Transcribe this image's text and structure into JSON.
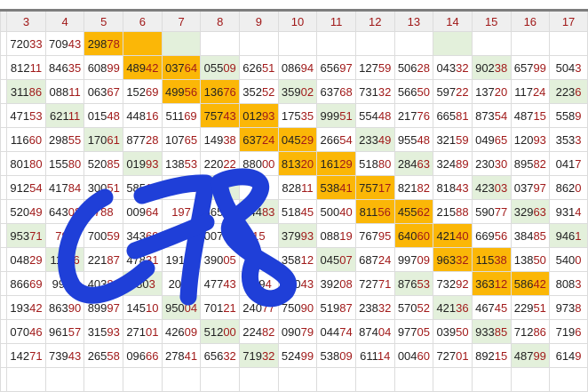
{
  "colors": {
    "highlight_orange": "#fbb707",
    "highlight_green": "#e3f0db",
    "digit_red": "#a11a1a",
    "ink_blue": "#1f3fd8"
  },
  "columns": [
    "3",
    "4",
    "5",
    "6",
    "7",
    "8",
    "9",
    "10",
    "11",
    "12",
    "13",
    "14",
    "15",
    "16",
    "17"
  ],
  "handwriting": "C78",
  "rows": [
    {
      "values": [
        "72033",
        "70943",
        "29878",
        "",
        "",
        "",
        "",
        "",
        "",
        "",
        "",
        "",
        "",
        "",
        ""
      ],
      "highlight": [
        "",
        "",
        "orange",
        "orange",
        "green",
        "",
        "",
        "",
        "",
        "",
        "",
        "green",
        "",
        "",
        ""
      ]
    },
    {
      "values": [
        "81211",
        "84635",
        "60899",
        "48942",
        "03764",
        "05509",
        "62651",
        "08694",
        "65697",
        "12759",
        "50628",
        "04332",
        "90238",
        "65799",
        "5043"
      ],
      "highlight": [
        "",
        "",
        "",
        "orange",
        "orange",
        "green",
        "",
        "",
        "",
        "",
        "",
        "",
        "green",
        "",
        ""
      ]
    },
    {
      "values": [
        "31186",
        "08811",
        "06367",
        "15269",
        "49956",
        "13676",
        "35252",
        "35902",
        "63768",
        "73132",
        "56650",
        "59722",
        "13720",
        "11724",
        "2236"
      ],
      "highlight": [
        "green",
        "",
        "",
        "",
        "orange",
        "orange",
        "",
        "green",
        "",
        "",
        "",
        "",
        "",
        "",
        "green"
      ]
    },
    {
      "values": [
        "47153",
        "62111",
        "01548",
        "44816",
        "51169",
        "75743",
        "01293",
        "17535",
        "99951",
        "55448",
        "21776",
        "66581",
        "87354",
        "48715",
        "5589"
      ],
      "highlight": [
        "",
        "green",
        "",
        "",
        "",
        "orange",
        "orange",
        "",
        "green",
        "",
        "",
        "",
        "",
        "",
        ""
      ]
    },
    {
      "values": [
        "11660",
        "29855",
        "17061",
        "87728",
        "10765",
        "14938",
        "63724",
        "04529",
        "26654",
        "23349",
        "95548",
        "32159",
        "04965",
        "12093",
        "3533"
      ],
      "highlight": [
        "",
        "",
        "green",
        "",
        "",
        "",
        "orange",
        "orange",
        "",
        "green",
        "",
        "",
        "",
        "",
        ""
      ]
    },
    {
      "values": [
        "80180",
        "15580",
        "52085",
        "01993",
        "13853",
        "22022",
        "88000",
        "81320",
        "16129",
        "51880",
        "28463",
        "32489",
        "23030",
        "89582",
        "0417"
      ],
      "highlight": [
        "",
        "",
        "",
        "green",
        "",
        "",
        "",
        "orange",
        "orange",
        "",
        "green",
        "",
        "",
        "",
        ""
      ]
    },
    {
      "values": [
        "91254",
        "41784",
        "30051",
        "58517",
        "97616",
        "44",
        "83",
        "82811",
        "53841",
        "75717",
        "82182",
        "81843",
        "42303",
        "03797",
        "8620"
      ],
      "highlight": [
        "",
        "",
        "",
        "",
        "",
        "green",
        "",
        "",
        "orange",
        "orange",
        "",
        "",
        "green",
        "",
        ""
      ]
    },
    {
      "values": [
        "52049",
        "64308",
        "788",
        "00964",
        "197",
        "66575",
        "24483",
        "51845",
        "50040",
        "81156",
        "45562",
        "21588",
        "59077",
        "32963",
        "9314"
      ],
      "highlight": [
        "",
        "",
        "",
        "",
        "",
        "",
        "green",
        "",
        "",
        "orange",
        "orange",
        "",
        "",
        "green",
        ""
      ]
    },
    {
      "values": [
        "95371",
        "798",
        "70059",
        "34369",
        "63",
        "00730",
        "15",
        "37993",
        "08819",
        "76795",
        "64060",
        "42140",
        "66956",
        "38485",
        "9461"
      ],
      "highlight": [
        "green",
        "",
        "",
        "",
        "",
        "",
        "",
        "green",
        "",
        "",
        "orange",
        "orange",
        "",
        "",
        "green"
      ]
    },
    {
      "values": [
        "04829",
        "11116",
        "22187",
        "47831",
        "19116",
        "39005",
        "3801",
        "35812",
        "04507",
        "68724",
        "99709",
        "96332",
        "11538",
        "13850",
        "5400"
      ],
      "highlight": [
        "",
        "green",
        "",
        "",
        "",
        "",
        "",
        "",
        "green",
        "",
        "",
        "orange",
        "orange",
        "",
        ""
      ]
    },
    {
      "values": [
        "86669",
        "9901",
        "40389",
        "4803",
        "2030",
        "47743",
        "8894",
        "00043",
        "39208",
        "72771",
        "87653",
        "73292",
        "36312",
        "58642",
        "8083"
      ],
      "highlight": [
        "",
        "",
        "",
        "green",
        "",
        "",
        "",
        "",
        "",
        "",
        "green",
        "",
        "orange",
        "orange",
        ""
      ]
    },
    {
      "values": [
        "19342",
        "86390",
        "89997",
        "14510",
        "95004",
        "70121",
        "24077",
        "75090",
        "51987",
        "23832",
        "57052",
        "42136",
        "46745",
        "22951",
        "9738"
      ],
      "highlight": [
        "",
        "",
        "",
        "",
        "green",
        "",
        "",
        "",
        "",
        "",
        "",
        "green",
        "",
        "",
        ""
      ]
    },
    {
      "values": [
        "07046",
        "96157",
        "31593",
        "27101",
        "42609",
        "51200",
        "22482",
        "09079",
        "04474",
        "87404",
        "97705",
        "03950",
        "93385",
        "71286",
        "7196"
      ],
      "highlight": [
        "",
        "",
        "",
        "",
        "",
        "green",
        "",
        "",
        "",
        "",
        "",
        "",
        "green",
        "",
        ""
      ]
    },
    {
      "values": [
        "14271",
        "73943",
        "26558",
        "09666",
        "27841",
        "65632",
        "71932",
        "52499",
        "53809",
        "61114",
        "00460",
        "72701",
        "89215",
        "48799",
        "6149"
      ],
      "highlight": [
        "",
        "",
        "",
        "",
        "",
        "",
        "green",
        "",
        "",
        "",
        "",
        "",
        "",
        "green",
        ""
      ]
    },
    {
      "values": [
        "",
        "",
        "",
        "",
        "",
        "",
        "",
        "",
        "",
        "",
        "",
        "",
        "",
        "",
        ""
      ],
      "highlight": [
        "",
        "",
        "",
        "",
        "",
        "",
        "",
        "",
        "",
        "",
        "",
        "",
        "",
        "",
        ""
      ]
    }
  ]
}
